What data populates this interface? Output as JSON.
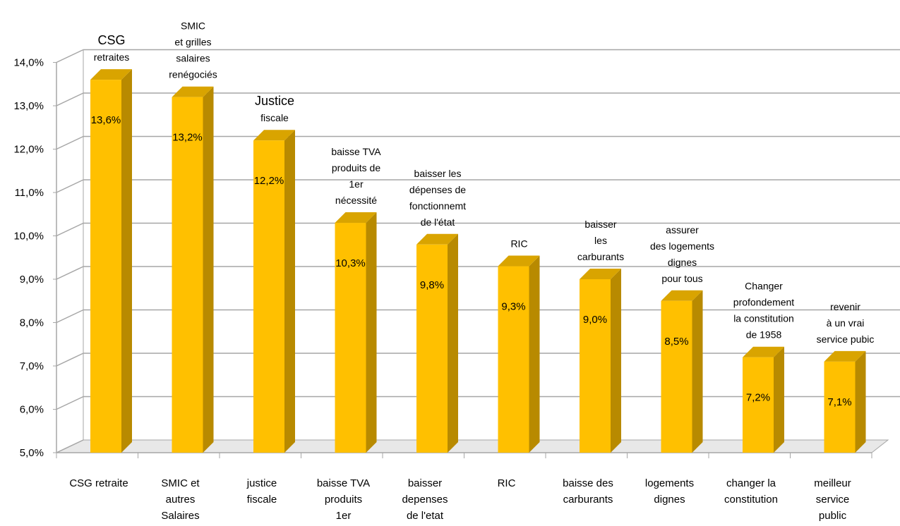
{
  "chart_data": {
    "type": "bar",
    "categories": [
      [
        "CSG retraite"
      ],
      [
        "SMIC et",
        "autres",
        "Salaires"
      ],
      [
        "justice",
        "fiscale"
      ],
      [
        "baisse TVA",
        "produits",
        "1er"
      ],
      [
        "baisser",
        "depenses",
        "de l'etat"
      ],
      [
        "RIC"
      ],
      [
        "baisse des",
        "carburants"
      ],
      [
        "logements",
        "dignes"
      ],
      [
        "changer la",
        "constitution"
      ],
      [
        "meilleur",
        "service",
        "public"
      ]
    ],
    "values": [
      13.6,
      13.2,
      12.2,
      10.3,
      9.8,
      9.3,
      9.0,
      8.5,
      7.2,
      7.1
    ],
    "data_labels": [
      "13,6%",
      "13,2%",
      "12,2%",
      "10,3%",
      "9,8%",
      "9,3%",
      "9,0%",
      "8,5%",
      "7,2%",
      "7,1%"
    ],
    "annotations": [
      {
        "lines": [
          "CSG",
          "retraites"
        ],
        "big_first": true
      },
      {
        "lines": [
          "SMIC",
          "et grilles",
          "salaires",
          "renégociés"
        ],
        "big_first": false
      },
      {
        "lines": [
          "Justice",
          "fiscale"
        ],
        "big_first": true
      },
      {
        "lines": [
          "baisse TVA",
          "produits de",
          "1er",
          "nécessité"
        ],
        "big_first": false
      },
      {
        "lines": [
          "baisser les",
          "dépenses  de",
          "fonctionnemt",
          "de l'état"
        ],
        "big_first": false
      },
      {
        "lines": [
          "RIC"
        ],
        "big_first": false
      },
      {
        "lines": [
          "baisser",
          "les",
          "carburants"
        ],
        "big_first": false
      },
      {
        "lines": [
          "assurer",
          "des logements",
          "dignes",
          "pour tous"
        ],
        "big_first": false
      },
      {
        "lines": [
          "Changer",
          "profondement",
          "la constitution",
          "de 1958"
        ],
        "big_first": false
      },
      {
        "lines": [
          "revenir",
          "à un vrai",
          "service pubic"
        ],
        "big_first": false
      }
    ],
    "y_ticks": [
      "5,0%",
      "6,0%",
      "7,0%",
      "8,0%",
      "9,0%",
      "10,0%",
      "11,0%",
      "12,0%",
      "13,0%",
      "14,0%"
    ],
    "ylim": [
      5,
      14
    ],
    "grid": true,
    "title": "",
    "xlabel": "",
    "ylabel": "",
    "colors": {
      "bar_front": "#FFC000",
      "bar_side": "#B88A00",
      "bar_top": "#D9A400",
      "grid": "#A6A6A6",
      "floor": "#E8E8E8"
    }
  }
}
